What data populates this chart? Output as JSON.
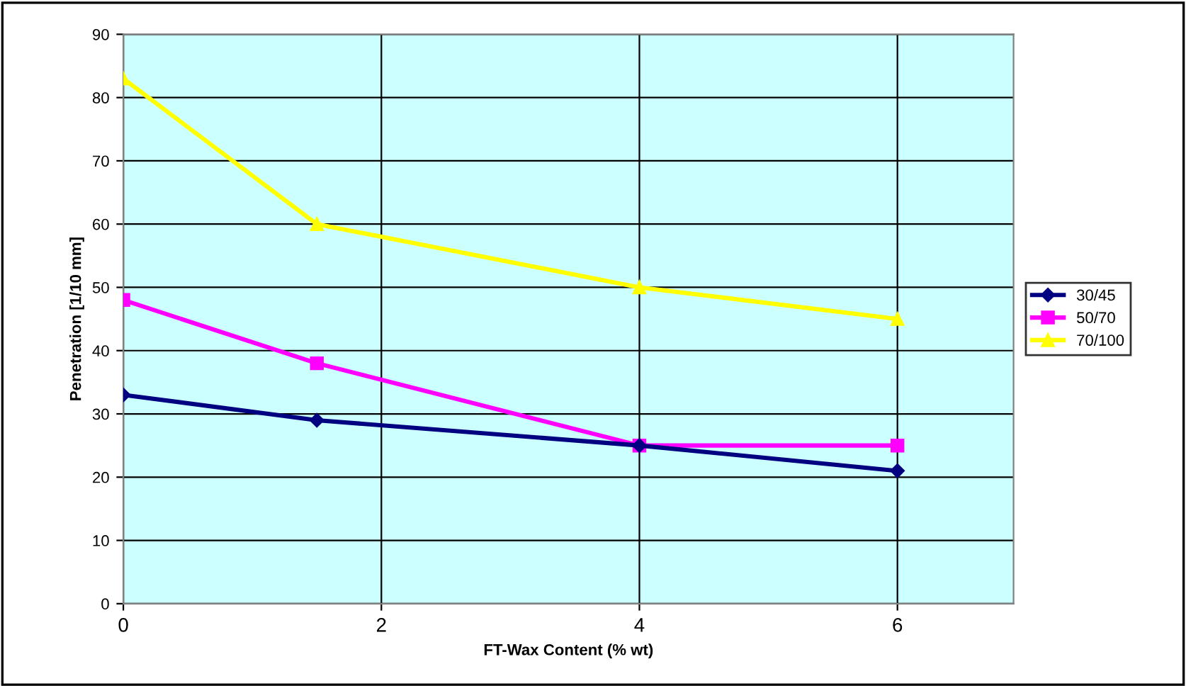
{
  "chart_data": {
    "type": "line",
    "xlabel": "FT-Wax Content (% wt)",
    "ylabel": "Penetration [1/10 mm]",
    "x": [
      0,
      1.5,
      4,
      6
    ],
    "series": [
      {
        "name": "30/45",
        "color": "#000080",
        "values": [
          33,
          29,
          25,
          21
        ],
        "marker": "diamond"
      },
      {
        "name": "50/70",
        "color": "#ff00ff",
        "values": [
          48,
          38,
          25,
          25
        ],
        "marker": "square"
      },
      {
        "name": "70/100",
        "color": "#ffff00",
        "values": [
          83,
          60,
          50,
          45
        ],
        "marker": "triangle"
      }
    ],
    "xlim": [
      0,
      6.9
    ],
    "xticks": [
      0,
      2,
      4,
      6
    ],
    "ylim": [
      0,
      90
    ],
    "yticks": [
      0,
      10,
      20,
      30,
      40,
      50,
      60,
      70,
      80,
      90
    ],
    "grid": true,
    "legend": "right",
    "line_style": "solid"
  }
}
